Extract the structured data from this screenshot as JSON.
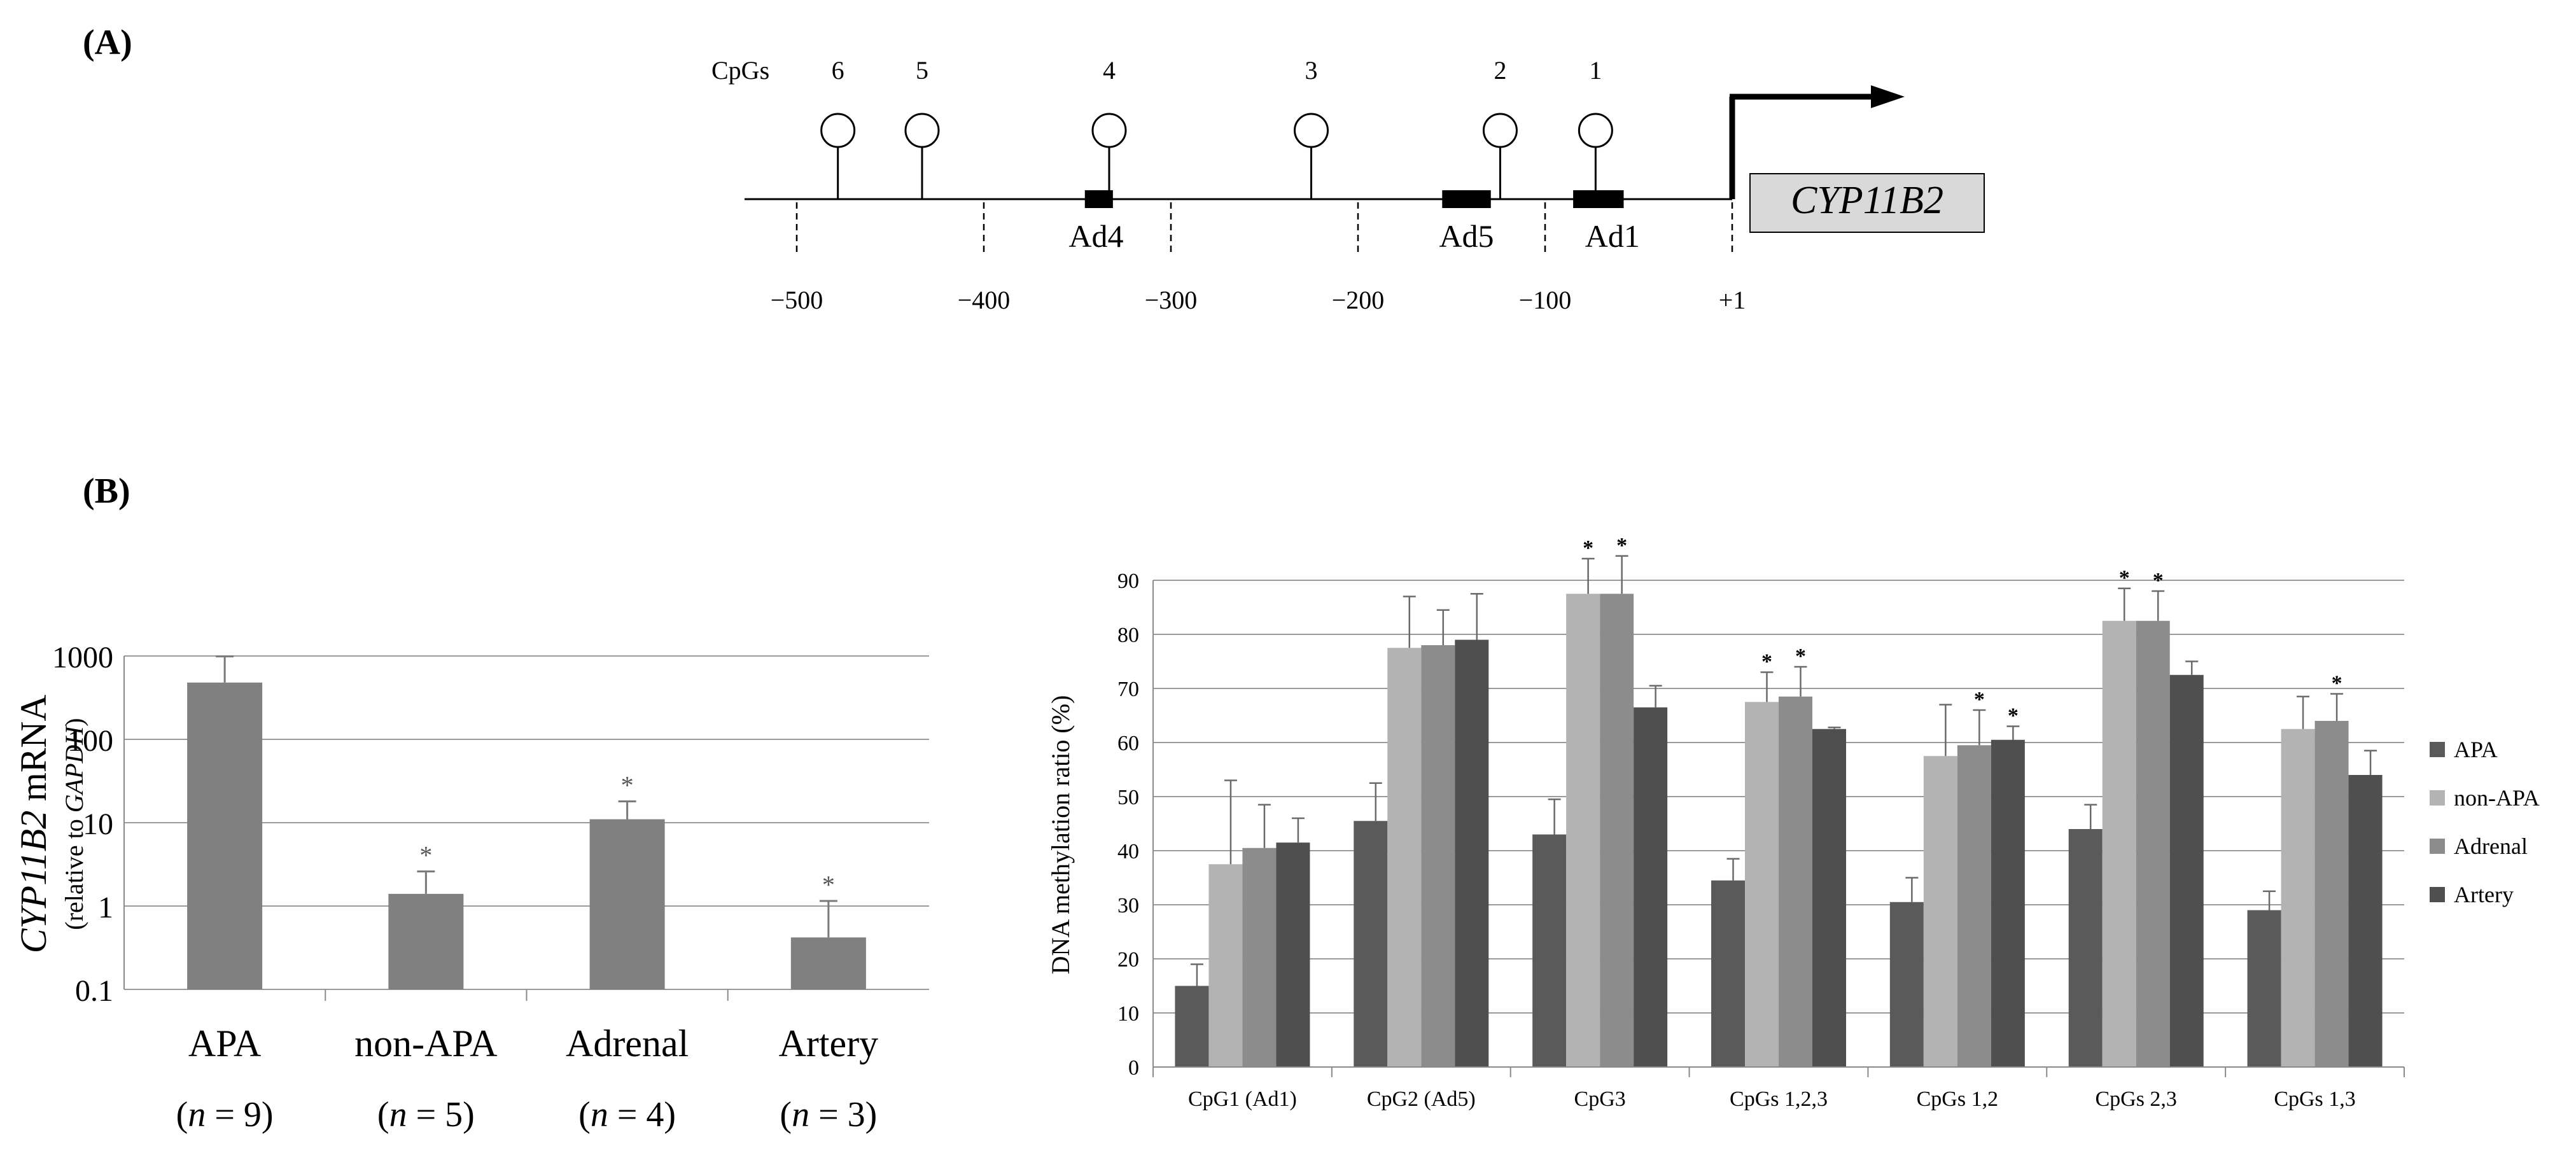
{
  "panel_a": {
    "label": "(A)",
    "cpgs_label": "CpGs",
    "cpg_numbers": [
      "6",
      "5",
      "4",
      "3",
      "2",
      "1"
    ],
    "cpg_positions": [
      -478,
      -433,
      -333,
      -225,
      -124,
      -73
    ],
    "sites": [
      {
        "label": "Ad4",
        "start": -346,
        "end": -331,
        "label_pos": -340
      },
      {
        "label": "Ad5",
        "start": -155,
        "end": -129,
        "label_pos": -142
      },
      {
        "label": "Ad1",
        "start": -85,
        "end": -58,
        "label_pos": -64
      }
    ],
    "ticks": [
      {
        "value": -500,
        "label": "−500"
      },
      {
        "value": -400,
        "label": "−400"
      },
      {
        "value": -300,
        "label": "−300"
      },
      {
        "value": -200,
        "label": "−200"
      },
      {
        "value": -100,
        "label": "−100"
      },
      {
        "value": 0,
        "label": "+1"
      }
    ],
    "gene": "CYP11B2"
  },
  "panel_b_label": "(B)",
  "chart_data": [
    {
      "type": "bar",
      "yscale": "log",
      "ylim": [
        0.1,
        1000
      ],
      "yticks": [
        "0.1",
        "1",
        "10",
        "100",
        "1000"
      ],
      "ylabel_gene": "CYP11B2",
      "ylabel_rest": " mRNA",
      "ylabel2_pre": "(relative to ",
      "ylabel2_gene": "GAPDH",
      "ylabel2_post": ")",
      "categories": [
        "APA",
        "non-APA",
        "Adrenal",
        "Artery"
      ],
      "n_labels": [
        {
          "pre": "(",
          "n": "n",
          "post": " = 9)"
        },
        {
          "pre": "(",
          "n": "n",
          "post": " = 5)"
        },
        {
          "pre": "(",
          "n": "n",
          "post": " = 4)"
        },
        {
          "pre": "(",
          "n": "n",
          "post": " = 3)"
        }
      ],
      "values": [
        480,
        1.4,
        11,
        0.42
      ],
      "errors_upper": [
        990,
        2.6,
        18,
        1.15
      ],
      "significance": [
        "",
        "*",
        "*",
        "*"
      ],
      "color": "#808080",
      "grid": true
    },
    {
      "type": "bar",
      "ylabel": "DNA methylation ratio (%)",
      "ylim": [
        0,
        90
      ],
      "yticks": [
        "0",
        "10",
        "20",
        "30",
        "40",
        "50",
        "60",
        "70",
        "80",
        "90"
      ],
      "categories": [
        "CpG1 (Ad1)",
        "CpG2 (Ad5)",
        "CpG3",
        "CpGs 1,2,3",
        "CpGs 1,2",
        "CpGs 2,3",
        "CpGs 1,3"
      ],
      "series": [
        {
          "name": "APA",
          "color": "#5a5a5a",
          "values": [
            15,
            45.5,
            43,
            34.5,
            30.5,
            44,
            29
          ],
          "errors": [
            4,
            7,
            6.5,
            4,
            4.5,
            4.5,
            3.5
          ],
          "significance": [
            "",
            "",
            "",
            "",
            "",
            "",
            ""
          ]
        },
        {
          "name": "non-APA",
          "color": "#b3b3b3",
          "values": [
            37.5,
            77.5,
            87.5,
            67.5,
            57.5,
            82.5,
            62.5
          ],
          "errors": [
            15.5,
            9.5,
            6.5,
            5.5,
            9.5,
            6,
            6
          ],
          "significance": [
            "",
            "",
            "*",
            "*",
            "",
            "*",
            ""
          ]
        },
        {
          "name": "Adrenal",
          "color": "#8c8c8c",
          "values": [
            40.5,
            78,
            87.5,
            68.5,
            59.5,
            82.5,
            64
          ],
          "errors": [
            8,
            6.5,
            7,
            5.5,
            6.5,
            5.5,
            5
          ],
          "significance": [
            "",
            "",
            "*",
            "*",
            "*",
            "*",
            "*"
          ]
        },
        {
          "name": "Artery",
          "color": "#4f4f4f",
          "values": [
            41.5,
            79,
            66.5,
            62.5,
            60.5,
            72.5,
            54
          ],
          "errors": [
            4.5,
            8.5,
            4,
            0.3,
            2.5,
            2.5,
            4.5
          ],
          "significance": [
            "",
            "",
            "",
            "",
            "*",
            "",
            ""
          ]
        }
      ],
      "legend_position": "right",
      "grid": true
    }
  ]
}
